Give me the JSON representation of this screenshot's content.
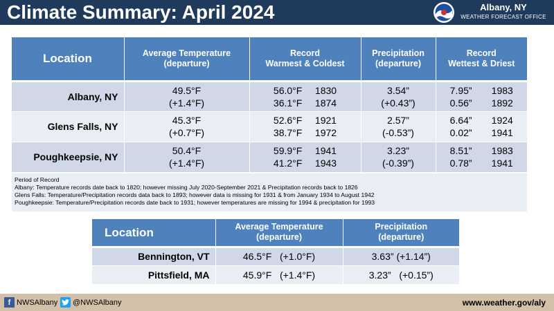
{
  "header": {
    "title": "Climate Summary: April 2024",
    "office_location": "Albany, NY",
    "office_subtitle": "WEATHER FORECAST OFFICE"
  },
  "main_table": {
    "headers": {
      "location": "Location",
      "avg_temp_1": "Average Temperature",
      "avg_temp_2": "(departure)",
      "rec_temp_1": "Record",
      "rec_temp_2": "Warmest & Coldest",
      "precip_1": "Precipitation",
      "precip_2": "(departure)",
      "rec_precip_1": "Record",
      "rec_precip_2": "Wettest & Driest"
    },
    "rows": [
      {
        "location": "Albany, NY",
        "avg_temp": "49.5°F",
        "avg_dep": "(+1.4°F)",
        "warm_val": "56.0°F",
        "warm_year": "1830",
        "cold_val": "36.1°F",
        "cold_year": "1874",
        "precip": "3.54”",
        "precip_dep": "(+0.43”)",
        "wet_val": "7.95”",
        "wet_year": "1983",
        "dry_val": "0.56”",
        "dry_year": "1892"
      },
      {
        "location": "Glens Falls, NY",
        "avg_temp": "45.3°F",
        "avg_dep": "(+0.7°F)",
        "warm_val": "52.6°F",
        "warm_year": "1921",
        "cold_val": "38.7°F",
        "cold_year": "1972",
        "precip": "2.57”",
        "precip_dep": "(-0.53”)",
        "wet_val": "6.64”",
        "wet_year": "1924",
        "dry_val": "0.02”",
        "dry_year": "1941"
      },
      {
        "location": "Poughkeepsie, NY",
        "avg_temp": "50.4°F",
        "avg_dep": "(+1.4°F)",
        "warm_val": "59.9°F",
        "warm_year": "1941",
        "cold_val": "41.2°F",
        "cold_year": "1943",
        "precip": "3.23”",
        "precip_dep": "(-0.39”)",
        "wet_val": "8.51”",
        "wet_year": "1983",
        "dry_val": "0.78”",
        "dry_year": "1941"
      }
    ]
  },
  "period_of_record": {
    "title": "Period of Record",
    "albany": "Albany: Temperature records date back to 1820; however missing July 2020-September 2021 & Precipitation records back to 1826",
    "glens_falls": "Glens Falls: Temperature/Precipitation records data back to 1893; however data is missing for 1931 & from January 1934 to August 1942",
    "poughkeepsie": "Poughkeepsie: Temperature/Precipitation records date back to 1931; however temperatures are missing for 1994 & precipitation for 1993"
  },
  "secondary_table": {
    "headers": {
      "location": "Location",
      "avg_temp_1": "Average Temperature",
      "avg_temp_2": "(departure)",
      "precip_1": "Precipitation",
      "precip_2": "(departure)"
    },
    "rows": [
      {
        "location": "Bennington, VT",
        "avg_temp": "46.5°F",
        "avg_dep": "(+1.0°F)",
        "precip": "3.63”",
        "precip_dep": "(+1.14”)"
      },
      {
        "location": "Pittsfield, MA",
        "avg_temp": "45.9°F",
        "avg_dep": "(+1.4°F)",
        "precip": "3.23”",
        "precip_dep": "(+0.15”)"
      }
    ]
  },
  "footer": {
    "facebook": "NWSAlbany",
    "twitter": "@NWSAlbany",
    "website": "www.weather.gov/aly"
  },
  "colors": {
    "header_bg": "#1f3a5a",
    "table_header": "#4f81bd",
    "row_dark": "#d0d8e8",
    "row_light": "#e9edf4",
    "footer_bg": "#d3c0a8"
  }
}
